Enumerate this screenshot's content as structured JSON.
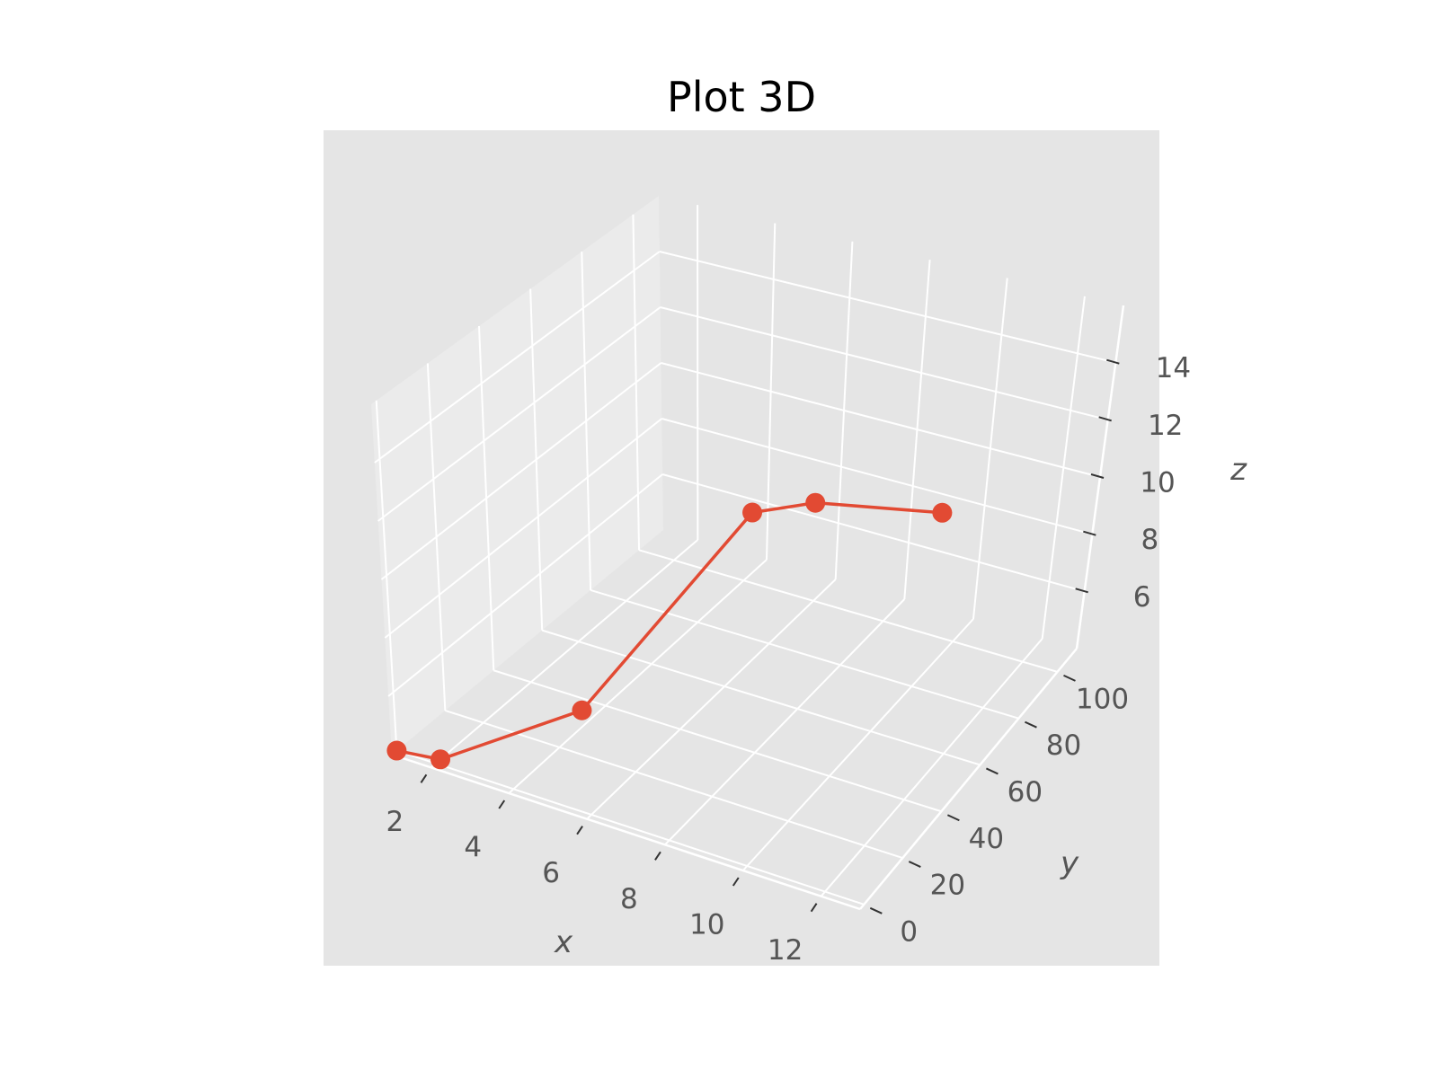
{
  "chart_data": {
    "type": "line",
    "title": "Plot 3D",
    "xlabel": "x",
    "ylabel": "y",
    "zlabel": "z",
    "x_ticks": [
      "2",
      "4",
      "6",
      "8",
      "10",
      "12"
    ],
    "y_ticks": [
      "0",
      "20",
      "40",
      "60",
      "80",
      "100"
    ],
    "z_ticks": [
      "6",
      "8",
      "10",
      "12",
      "14"
    ],
    "xlim": [
      1,
      13
    ],
    "ylim": [
      -2,
      110
    ],
    "zlim": [
      4,
      16
    ],
    "grid": true,
    "series": [
      {
        "marker": "circle",
        "color": "#E24A33",
        "x": [
          1,
          2,
          5,
          9,
          10,
          12
        ],
        "y": [
          0,
          2,
          15,
          30,
          40,
          60
        ],
        "z": [
          4,
          4,
          6,
          13,
          13,
          12
        ]
      }
    ]
  },
  "colors": {
    "pane_background": "#E5E5E5",
    "grid": "#FFFFFF",
    "series": "#E24A33",
    "tick_text": "#555555"
  }
}
